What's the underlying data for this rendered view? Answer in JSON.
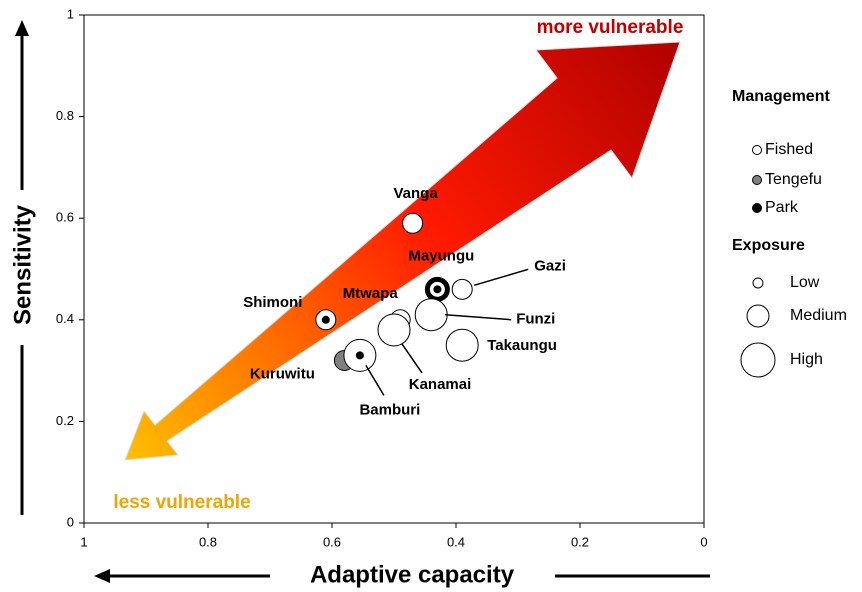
{
  "chart_data": {
    "type": "bubble",
    "x_label": "Adaptive capacity",
    "y_label": "Sensitivity",
    "annotations": [
      "more vulnerable",
      "less vulnerable"
    ],
    "xlim": [
      1,
      0
    ],
    "ylim": [
      0,
      1
    ],
    "xticks": [
      1,
      0.8,
      0.6,
      0.4,
      0.2,
      0
    ],
    "yticks": [
      0,
      0.2,
      0.4,
      0.6,
      0.8,
      1
    ],
    "legend_management": {
      "title": "Management",
      "items": [
        "Fished",
        "Tengefu",
        "Park"
      ],
      "colors": [
        "#ffffff",
        "#808080",
        "#000000"
      ]
    },
    "legend_exposure": {
      "title": "Exposure",
      "items": [
        "Low",
        "Medium",
        "High"
      ]
    },
    "points": [
      {
        "name": "Vanga",
        "x": 0.47,
        "y": 0.59,
        "management": "Fished",
        "exposure": "Medium"
      },
      {
        "name": "Mayungu",
        "x": 0.43,
        "y": 0.46,
        "management": "Park",
        "exposure": "Medium"
      },
      {
        "name": "Gazi",
        "x": 0.39,
        "y": 0.46,
        "management": "Fished",
        "exposure": "Medium"
      },
      {
        "name": "Funzi",
        "x": 0.44,
        "y": 0.41,
        "management": "Fished",
        "exposure": "High"
      },
      {
        "name": "Mtwapa",
        "x": 0.49,
        "y": 0.4,
        "management": "Fished",
        "exposure": "Medium"
      },
      {
        "name": "Kanamai",
        "x": 0.5,
        "y": 0.38,
        "management": "Fished",
        "exposure": "High"
      },
      {
        "name": "Takaungu",
        "x": 0.39,
        "y": 0.35,
        "management": "Fished",
        "exposure": "High"
      },
      {
        "name": "Shimoni",
        "x": 0.61,
        "y": 0.4,
        "management": "Park",
        "exposure": "Medium"
      },
      {
        "name": "Kuruwitu",
        "x": 0.58,
        "y": 0.32,
        "management": "Tengefu",
        "exposure": "Medium"
      },
      {
        "name": "Bamburi",
        "x": 0.555,
        "y": 0.33,
        "management": "Park",
        "exposure": "High"
      }
    ]
  }
}
